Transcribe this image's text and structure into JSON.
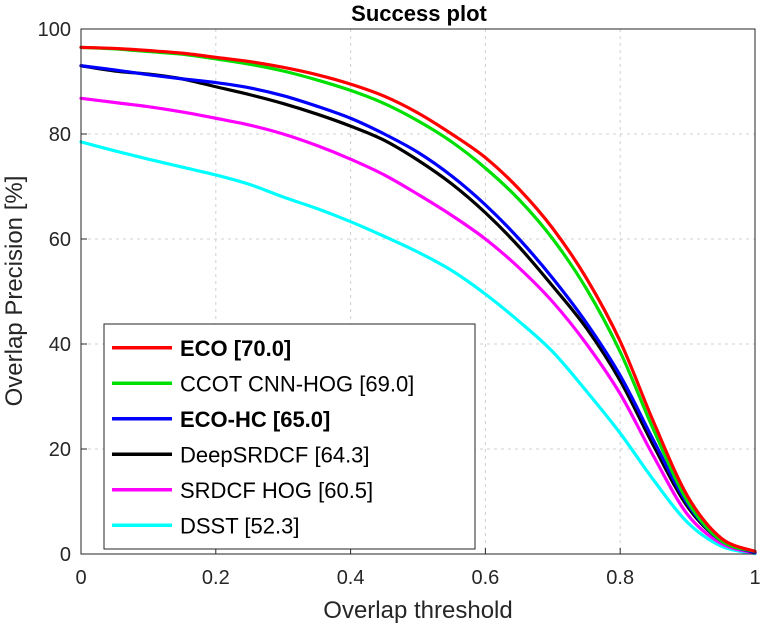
{
  "chart_data": {
    "type": "line",
    "title": "Success plot",
    "xlabel": "Overlap threshold",
    "ylabel": "Overlap Precision [%]",
    "xlim": [
      0,
      1
    ],
    "ylim": [
      0,
      100
    ],
    "xticks": [
      "0",
      "0.2",
      "0.4",
      "0.6",
      "0.8",
      "1"
    ],
    "yticks": [
      "0",
      "20",
      "40",
      "60",
      "80",
      "100"
    ],
    "grid": true,
    "legend_position": "bottom-left",
    "x": [
      0,
      0.05,
      0.1,
      0.15,
      0.2,
      0.25,
      0.3,
      0.35,
      0.4,
      0.45,
      0.5,
      0.55,
      0.6,
      0.65,
      0.7,
      0.75,
      0.8,
      0.85,
      0.9,
      0.95,
      1.0
    ],
    "series": [
      {
        "name": "ECO [70.0]",
        "bold": true,
        "color": "#ff0000",
        "values": [
          96.5,
          96.3,
          95.9,
          95.4,
          94.6,
          93.8,
          92.7,
          91.3,
          89.5,
          87.2,
          84.0,
          80.0,
          75.5,
          69.5,
          62.0,
          52.5,
          40.5,
          25.0,
          11.0,
          3.0,
          0.5
        ]
      },
      {
        "name": "CCOT CNN-HOG [69.0]",
        "bold": false,
        "color": "#00e000",
        "values": [
          96.5,
          96.2,
          95.7,
          95.2,
          94.3,
          93.3,
          92.0,
          90.3,
          88.3,
          85.8,
          82.5,
          78.5,
          73.5,
          67.5,
          60.0,
          50.5,
          38.5,
          23.5,
          10.0,
          2.5,
          0.5
        ]
      },
      {
        "name": "ECO-HC [65.0]",
        "bold": true,
        "color": "#0000ff",
        "values": [
          93.0,
          92.2,
          91.3,
          90.5,
          89.8,
          88.8,
          87.3,
          85.3,
          83.0,
          80.0,
          76.5,
          72.0,
          66.5,
          60.0,
          52.5,
          44.0,
          34.0,
          21.5,
          9.5,
          2.5,
          0.3
        ]
      },
      {
        "name": "DeepSRDCF [64.3]",
        "bold": false,
        "color": "#000000",
        "values": [
          93.0,
          92.0,
          91.4,
          90.5,
          89.0,
          87.5,
          85.8,
          83.8,
          81.5,
          78.8,
          75.0,
          70.5,
          65.0,
          58.5,
          51.0,
          43.0,
          33.0,
          20.5,
          9.0,
          2.5,
          0.3
        ]
      },
      {
        "name": "SRDCF HOG [60.5]",
        "bold": false,
        "color": "#ff00ff",
        "values": [
          86.8,
          86.0,
          85.2,
          84.2,
          83.0,
          81.7,
          80.0,
          77.8,
          75.2,
          72.2,
          68.5,
          64.5,
          60.0,
          54.5,
          48.0,
          40.0,
          30.5,
          18.5,
          7.5,
          2.0,
          0.2
        ]
      },
      {
        "name": "DSST [52.3]",
        "bold": false,
        "color": "#00ffff",
        "values": [
          78.5,
          76.8,
          75.2,
          73.7,
          72.2,
          70.4,
          68.0,
          65.8,
          63.3,
          60.5,
          57.5,
          54.0,
          49.5,
          44.3,
          38.5,
          31.0,
          23.0,
          14.0,
          6.0,
          1.5,
          0.1
        ]
      }
    ]
  }
}
